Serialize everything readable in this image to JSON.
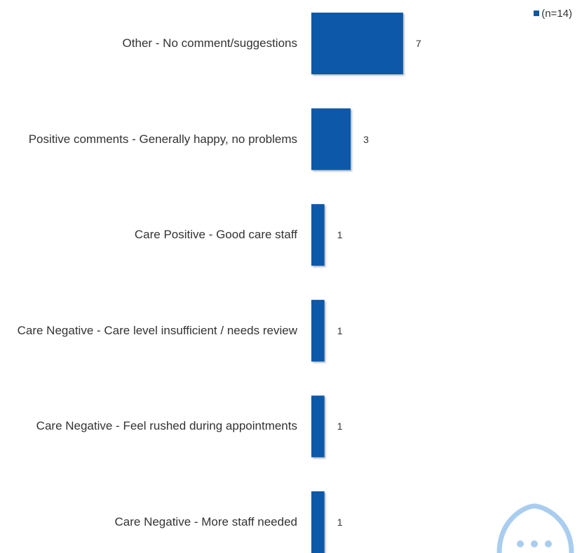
{
  "chart_data": {
    "type": "bar",
    "orientation": "horizontal",
    "categories": [
      "Other - No comment/suggestions",
      "Positive comments - Generally happy, no problems",
      "Care Positive - Good care staff",
      "Care Negative - Care level insufficient / needs review",
      "Care Negative - Feel rushed during appointments",
      "Care Negative - More staff needed"
    ],
    "series": [
      {
        "name": "(n=14)",
        "color": "#0a58a8",
        "values": [
          7,
          3,
          1,
          1,
          1,
          1
        ]
      }
    ],
    "legend": "top-right"
  }
}
